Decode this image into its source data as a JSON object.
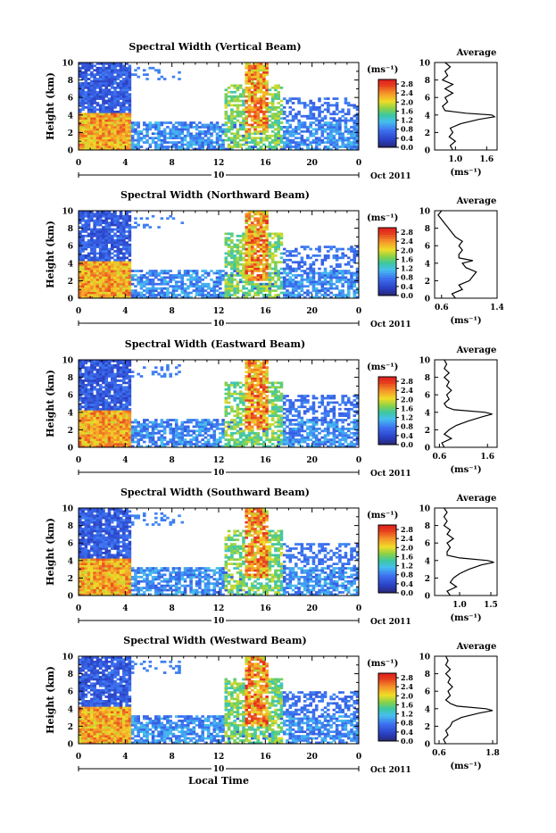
{
  "footer": {
    "xlabel": "Local Time"
  },
  "chart_data": [
    {
      "type": "heatmap",
      "title": "Spectral Width (Vertical Beam)",
      "ylabel": "Height (km)",
      "yticks": [
        "0",
        "2",
        "4",
        "6",
        "8",
        "10"
      ],
      "ylim": [
        0,
        10
      ],
      "xticks": [
        "0",
        "4",
        "8",
        "12",
        "16",
        "20",
        "0"
      ],
      "xlim": [
        0,
        24
      ],
      "date_marker": "10",
      "date_label": "Oct 2011",
      "colorbar": {
        "unit": "(ms⁻¹)",
        "ticks": [
          "0.0",
          "0.4",
          "0.8",
          "1.2",
          "1.6",
          "2.0",
          "2.4",
          "2.8"
        ],
        "vmin": 0.0,
        "vmax": 3.0
      },
      "average_profile": {
        "title": "Average",
        "xlabel": "(ms⁻¹)",
        "xticks": [
          "1.0",
          "1.6"
        ],
        "xlim": [
          0.6,
          1.8
        ],
        "heights": [
          0,
          0.5,
          1,
          1.5,
          2,
          2.5,
          3,
          3.5,
          3.8,
          4,
          4.2,
          4.5,
          5,
          5.5,
          6,
          6.5,
          7,
          7.5,
          8,
          8.5,
          9,
          9.5,
          10
        ],
        "values": [
          0.95,
          0.9,
          1.0,
          0.88,
          0.95,
          0.9,
          1.1,
          1.45,
          1.75,
          1.7,
          1.2,
          0.8,
          0.75,
          0.85,
          0.8,
          0.95,
          0.8,
          0.95,
          0.75,
          0.85,
          0.8,
          0.9,
          0.8
        ]
      }
    },
    {
      "type": "heatmap",
      "title": "Spectral Width (Northward Beam)",
      "ylabel": "Height (km)",
      "yticks": [
        "0",
        "2",
        "4",
        "6",
        "8",
        "10"
      ],
      "ylim": [
        0,
        10
      ],
      "xticks": [
        "0",
        "4",
        "8",
        "12",
        "16",
        "20",
        "0"
      ],
      "xlim": [
        0,
        24
      ],
      "date_marker": "10",
      "date_label": "Oct 2011",
      "colorbar": {
        "unit": "(ms⁻¹)",
        "ticks": [
          "0.0",
          "0.4",
          "0.8",
          "1.2",
          "1.6",
          "2.0",
          "2.4",
          "2.8"
        ],
        "vmin": 0.0,
        "vmax": 3.0
      },
      "average_profile": {
        "title": "Average",
        "xlabel": "(ms⁻¹)",
        "xticks": [
          "0.6",
          "1.4"
        ],
        "xlim": [
          0.5,
          1.4
        ],
        "heights": [
          0,
          0.5,
          1,
          1.5,
          2,
          2.5,
          3,
          3.5,
          4,
          4.3,
          4.6,
          5,
          5.5,
          6,
          6.5,
          7,
          7.5,
          8,
          8.5,
          9,
          9.5,
          10
        ],
        "values": [
          0.8,
          0.75,
          0.9,
          0.85,
          1.0,
          1.05,
          1.1,
          0.95,
          0.9,
          1.05,
          0.85,
          0.85,
          0.9,
          0.85,
          0.9,
          0.8,
          0.75,
          0.7,
          0.65,
          0.6,
          0.55,
          0.6
        ]
      }
    },
    {
      "type": "heatmap",
      "title": "Spectral Width (Eastward Beam)",
      "ylabel": "Height (km)",
      "yticks": [
        "0",
        "2",
        "4",
        "6",
        "8",
        "10"
      ],
      "ylim": [
        0,
        10
      ],
      "xticks": [
        "0",
        "4",
        "8",
        "12",
        "16",
        "20",
        "0"
      ],
      "xlim": [
        0,
        24
      ],
      "date_marker": "10",
      "date_label": "Oct 2011",
      "colorbar": {
        "unit": "(ms⁻¹)",
        "ticks": [
          "0.0",
          "0.4",
          "0.8",
          "1.2",
          "1.6",
          "2.0",
          "2.4",
          "2.8"
        ],
        "vmin": 0.0,
        "vmax": 3.0
      },
      "average_profile": {
        "title": "Average",
        "xlabel": "(ms⁻¹)",
        "xticks": [
          "0.6",
          "1.6"
        ],
        "xlim": [
          0.5,
          1.8
        ],
        "heights": [
          0,
          0.5,
          1,
          1.5,
          2,
          2.5,
          3,
          3.5,
          3.8,
          4,
          4.3,
          4.6,
          5,
          5.5,
          6,
          6.5,
          7,
          7.5,
          8,
          8.5,
          9,
          9.5,
          10
        ],
        "values": [
          0.7,
          0.65,
          0.85,
          0.7,
          0.8,
          0.95,
          1.2,
          1.5,
          1.7,
          1.55,
          0.9,
          0.75,
          0.7,
          0.8,
          0.75,
          0.85,
          0.75,
          0.8,
          0.7,
          0.8,
          0.7,
          0.75,
          0.7
        ]
      }
    },
    {
      "type": "heatmap",
      "title": "Spectral Width (Southward Beam)",
      "ylabel": "Height (km)",
      "yticks": [
        "0",
        "2",
        "4",
        "6",
        "8",
        "10"
      ],
      "ylim": [
        0,
        10
      ],
      "xticks": [
        "0",
        "4",
        "8",
        "12",
        "16",
        "20",
        "0"
      ],
      "xlim": [
        0,
        24
      ],
      "date_marker": "10",
      "date_label": "Oct 2011",
      "colorbar": {
        "unit": "(ms⁻¹)",
        "ticks": [
          "0.0",
          "0.4",
          "0.8",
          "1.2",
          "1.6",
          "2.0",
          "2.4",
          "2.8"
        ],
        "vmin": 0.0,
        "vmax": 3.0
      },
      "average_profile": {
        "title": "Average",
        "xlabel": "(ms⁻¹)",
        "xticks": [
          "1.0",
          "1.5"
        ],
        "xlim": [
          0.6,
          1.6
        ],
        "heights": [
          0,
          0.5,
          1,
          1.5,
          2,
          2.5,
          3,
          3.5,
          3.8,
          4,
          4.3,
          4.6,
          5,
          5.5,
          6,
          6.5,
          7,
          7.5,
          8,
          8.5,
          9,
          9.5,
          10
        ],
        "values": [
          0.85,
          0.8,
          0.95,
          0.85,
          0.9,
          1.0,
          1.15,
          1.35,
          1.55,
          1.45,
          1.0,
          0.8,
          0.8,
          0.85,
          0.8,
          0.9,
          0.8,
          0.85,
          0.75,
          0.8,
          0.75,
          0.8,
          0.75
        ]
      }
    },
    {
      "type": "heatmap",
      "title": "Spectral Width (Westward Beam)",
      "ylabel": "Height (km)",
      "yticks": [
        "0",
        "2",
        "4",
        "6",
        "8",
        "10"
      ],
      "ylim": [
        0,
        10
      ],
      "xticks": [
        "0",
        "4",
        "8",
        "12",
        "16",
        "20",
        "0"
      ],
      "xlim": [
        0,
        24
      ],
      "date_marker": "10",
      "date_label": "Oct 2011",
      "colorbar": {
        "unit": "(ms⁻¹)",
        "ticks": [
          "0.0",
          "0.4",
          "0.8",
          "1.2",
          "1.6",
          "2.0",
          "2.4",
          "2.8"
        ],
        "vmin": 0.0,
        "vmax": 3.0
      },
      "average_profile": {
        "title": "Average",
        "xlabel": "(ms⁻¹)",
        "xticks": [
          "0.6",
          "1.8"
        ],
        "xlim": [
          0.5,
          1.9
        ],
        "heights": [
          0,
          0.5,
          1,
          1.5,
          2,
          2.5,
          3,
          3.5,
          3.8,
          4,
          4.3,
          4.6,
          5,
          5.5,
          6,
          6.5,
          7,
          7.5,
          8,
          8.5,
          9,
          9.5,
          10
        ],
        "values": [
          0.75,
          0.7,
          0.8,
          0.75,
          0.85,
          0.9,
          1.1,
          1.5,
          1.8,
          1.65,
          1.0,
          0.85,
          0.75,
          0.85,
          0.8,
          0.9,
          0.8,
          0.85,
          0.75,
          0.85,
          0.75,
          0.8,
          0.75
        ]
      }
    }
  ]
}
